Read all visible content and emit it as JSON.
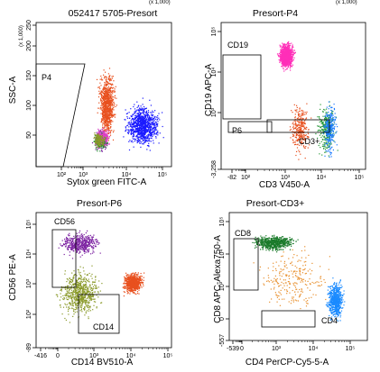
{
  "figure": {
    "top_fragments": [
      "(x 1,000)",
      "(x 1,000)"
    ]
  },
  "chart_data": [
    {
      "type": "scatter",
      "title": "052417 5705-Presort",
      "xlabel": "Sytox green FITC-A",
      "ylabel": "SSC-A",
      "y_multiplier_label": "(x 1,000)",
      "x_scale": "biexponential",
      "y_scale": "linear",
      "x_ticks": [
        "10²",
        "10³",
        "10⁴",
        "10⁵"
      ],
      "y_ticks": [
        "50",
        "100",
        "150",
        "200",
        "250"
      ],
      "ylim": [
        0,
        262
      ],
      "gates": [
        {
          "name": "P4"
        }
      ],
      "populations": [
        {
          "color": "#e8501e",
          "x_range": [
            80,
            1000
          ],
          "y_range": [
            30,
            200
          ],
          "count": 900
        },
        {
          "color": "#1a1aff",
          "x_range": [
            1000,
            150000
          ],
          "y_range": [
            20,
            130
          ],
          "count": 1000
        },
        {
          "color": "#7a1fa0",
          "x_range": [
            50,
            400
          ],
          "y_range": [
            25,
            75
          ],
          "count": 300
        },
        {
          "color": "#1e8c2e",
          "x_range": [
            50,
            400
          ],
          "y_range": [
            25,
            70
          ],
          "count": 200
        },
        {
          "color": "#e23ec9",
          "x_range": [
            60,
            600
          ],
          "y_range": [
            30,
            80
          ],
          "count": 150
        },
        {
          "color": "#8a9a2a",
          "x_range": [
            50,
            300
          ],
          "y_range": [
            30,
            70
          ],
          "count": 150
        }
      ]
    },
    {
      "type": "scatter",
      "title": "Presort-P4",
      "xlabel": "CD3 V450-A",
      "ylabel": "CD19 APC-A",
      "x_scale": "biexponential",
      "y_scale": "biexponential",
      "x_ticks": [
        "-82",
        "10²",
        "10³",
        "10⁴",
        "10⁵"
      ],
      "y_ticks": [
        "-3,258",
        "10³",
        "10⁴",
        "10⁵"
      ],
      "gates": [
        {
          "name": "CD19"
        },
        {
          "name": "P6"
        },
        {
          "name": "CD3+"
        }
      ],
      "populations": [
        {
          "name": "CD19",
          "color": "#ff2fb8",
          "x_range": [
            30,
            300
          ],
          "y_range": [
            2000,
            60000
          ],
          "count": 1000
        },
        {
          "name": "P6",
          "color": "#e8501e",
          "x_range": [
            100,
            1500
          ],
          "y_range": [
            -300,
            300
          ],
          "count": 300
        },
        {
          "name": "CD3+",
          "color": "#2a9a3a",
          "x_range": [
            1500,
            20000
          ],
          "y_range": [
            -300,
            300
          ],
          "count": 300
        },
        {
          "name": "CD3+",
          "color": "#1a7aff",
          "x_range": [
            3000,
            20000
          ],
          "y_range": [
            -300,
            300
          ],
          "count": 250
        }
      ]
    },
    {
      "type": "scatter",
      "title": "Presort-P6",
      "xlabel": "CD14 BV510-A",
      "ylabel": "CD56 PE-A",
      "x_scale": "biexponential",
      "y_scale": "biexponential",
      "x_ticks": [
        "-416",
        "0",
        "10³",
        "10⁴",
        "10⁵"
      ],
      "y_ticks": [
        "-89",
        "10²",
        "10³",
        "10⁴",
        "10⁵"
      ],
      "gates": [
        {
          "name": "CD56"
        },
        {
          "name": "CD14"
        }
      ],
      "populations": [
        {
          "name": "CD56",
          "color": "#7a1fa0",
          "x_range": [
            -100,
            300
          ],
          "y_range": [
            2000,
            60000
          ],
          "count": 450
        },
        {
          "color": "#8a9a2a",
          "x_range": [
            -100,
            300
          ],
          "y_range": [
            -50,
            2000
          ],
          "count": 700
        },
        {
          "name": "CD14",
          "color": "#e8501e",
          "x_range": [
            1000,
            20000
          ],
          "y_range": [
            30,
            800
          ],
          "count": 800
        }
      ]
    },
    {
      "type": "scatter",
      "title": "Presort-CD3+",
      "xlabel": "CD4 PerCP-Cy5-5-A",
      "ylabel": "CD8 APC-Alexa750-A",
      "x_scale": "biexponential",
      "y_scale": "biexponential",
      "x_ticks": [
        "-539",
        "0",
        "10³",
        "10⁴",
        "10⁵"
      ],
      "y_ticks": [
        "-557",
        "0",
        "10³",
        "10⁴",
        "10⁵"
      ],
      "gates": [
        {
          "name": "CD8"
        },
        {
          "name": "CD4"
        }
      ],
      "populations": [
        {
          "name": "CD8",
          "color": "#1a7a2a",
          "x_range": [
            -100,
            300
          ],
          "y_range": [
            3000,
            30000
          ],
          "count": 650
        },
        {
          "name": "CD4",
          "color": "#1a8aff",
          "x_range": [
            3000,
            30000
          ],
          "y_range": [
            -100,
            300
          ],
          "count": 650
        },
        {
          "color": "#e8902e",
          "x_range": [
            -100,
            20000
          ],
          "y_range": [
            -100,
            20000
          ],
          "count": 250
        }
      ]
    }
  ]
}
